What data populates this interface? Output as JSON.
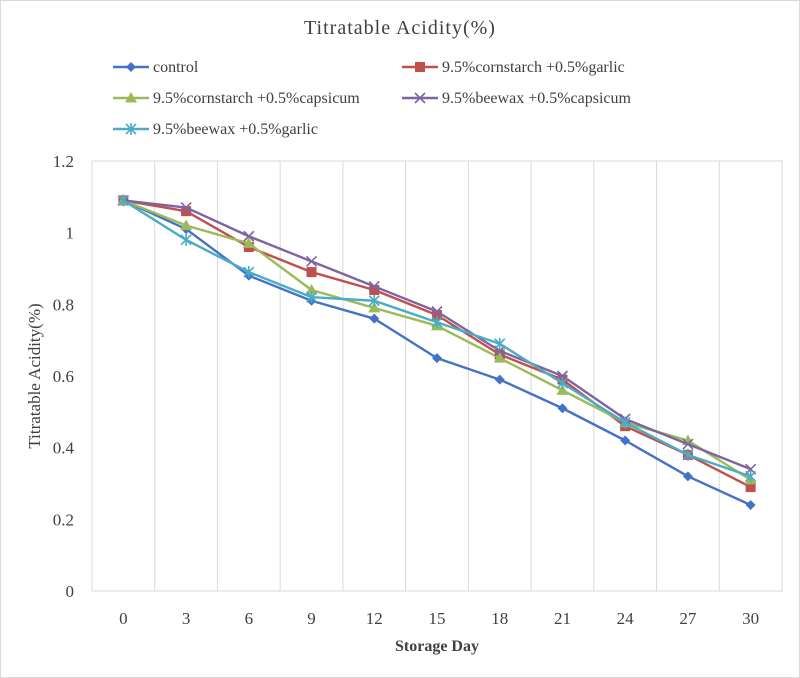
{
  "chart_data": {
    "type": "line",
    "title": "Titratable Acidity(%)",
    "xlabel": "Storage Day",
    "ylabel": "Titratable Acidity(%)",
    "x": [
      0,
      3,
      6,
      9,
      12,
      15,
      18,
      21,
      24,
      27,
      30
    ],
    "x_tick_labels": [
      "0",
      "3",
      "6",
      "9",
      "12",
      "15",
      "18",
      "21",
      "24",
      "27",
      "30"
    ],
    "y_tick_labels": [
      "0",
      "0.2",
      "0.4",
      "0.6",
      "0.8",
      "1",
      "1.2"
    ],
    "ylim": [
      0,
      1.2
    ],
    "grid": "vertical",
    "legend": "top",
    "series": [
      {
        "name": "control",
        "color": "#4472c4",
        "marker": "diamond",
        "values": [
          1.09,
          1.01,
          0.88,
          0.81,
          0.76,
          0.65,
          0.59,
          0.51,
          0.42,
          0.32,
          0.24
        ]
      },
      {
        "name": "9.5%cornstarch +0.5%garlic",
        "color": "#c0504d",
        "marker": "square",
        "values": [
          1.09,
          1.06,
          0.96,
          0.89,
          0.84,
          0.77,
          0.66,
          0.59,
          0.46,
          0.38,
          0.29
        ]
      },
      {
        "name": "9.5%cornstarch +0.5%capsicum",
        "color": "#9bbb59",
        "marker": "triangle",
        "values": [
          1.09,
          1.02,
          0.97,
          0.84,
          0.79,
          0.74,
          0.65,
          0.56,
          0.47,
          0.42,
          0.31
        ]
      },
      {
        "name": "9.5%beewax +0.5%capsicum",
        "color": "#8064a2",
        "marker": "x",
        "values": [
          1.09,
          1.07,
          0.99,
          0.92,
          0.85,
          0.78,
          0.67,
          0.6,
          0.48,
          0.41,
          0.34
        ]
      },
      {
        "name": "9.5%beewax +0.5%garlic",
        "color": "#4bacc6",
        "marker": "star",
        "values": [
          1.09,
          0.98,
          0.89,
          0.82,
          0.81,
          0.75,
          0.69,
          0.58,
          0.47,
          0.38,
          0.32
        ]
      }
    ]
  }
}
